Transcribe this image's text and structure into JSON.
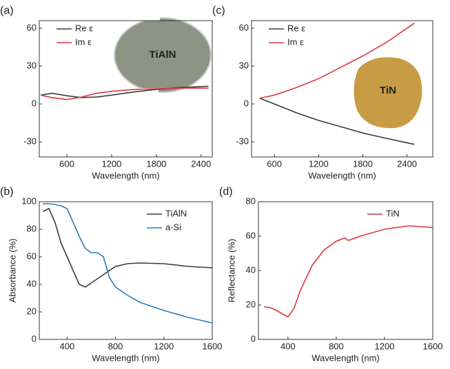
{
  "chart_data": [
    {
      "type": "line",
      "panel_label": "(a)",
      "xlabel": "Wavelength (nm)",
      "inset_label": "TiAlN",
      "legend": "upper left",
      "xlim": [
        230,
        2550
      ],
      "xticks": [
        600,
        1200,
        1800,
        2400
      ],
      "ylim": [
        -42,
        66
      ],
      "yticks": [
        -30,
        0,
        30,
        60
      ],
      "x": [
        250,
        400,
        600,
        800,
        1000,
        1200,
        1500,
        1800,
        2100,
        2500
      ],
      "series": [
        {
          "name": "Re ε",
          "color": "#3a3a3a",
          "values": [
            7,
            8.5,
            6.5,
            5,
            5.5,
            7,
            9.5,
            11.5,
            13,
            14
          ]
        },
        {
          "name": "Im ε",
          "color": "#d9363e",
          "values": [
            7,
            5,
            3.5,
            5.5,
            8.5,
            10,
            11.5,
            12,
            12.5,
            12.5
          ]
        }
      ]
    },
    {
      "type": "line",
      "panel_label": "(b)",
      "xlabel": "Wavelength (nm)",
      "ylabel": "Absorbance (%)",
      "legend": "upper right",
      "xlim": [
        170,
        1600
      ],
      "xticks": [
        400,
        800,
        1200,
        1600
      ],
      "ylim": [
        0,
        100
      ],
      "yticks": [
        0,
        20,
        40,
        60,
        80,
        100
      ],
      "x": [
        200,
        250,
        300,
        350,
        400,
        450,
        500,
        550,
        600,
        650,
        700,
        750,
        800,
        900,
        1000,
        1200,
        1400,
        1600
      ],
      "series": [
        {
          "name": "TiAlN",
          "color": "#3a3a3a",
          "values": [
            93,
            95,
            85,
            70,
            60,
            50,
            40,
            38,
            41,
            44,
            47,
            50,
            53,
            55,
            55.5,
            55,
            53,
            52
          ]
        },
        {
          "name": "a-Si",
          "color": "#2b7bba",
          "values": [
            98.5,
            98.5,
            98,
            97,
            95,
            85,
            75,
            66,
            63,
            63,
            60,
            45,
            38,
            32,
            27,
            21,
            16,
            12
          ]
        }
      ]
    },
    {
      "type": "line",
      "panel_label": "(c)",
      "xlabel": "Wavelength (nm)",
      "inset_label": "TiN",
      "legend": "upper left",
      "xlim": [
        290,
        2750
      ],
      "xticks": [
        600,
        1200,
        1800,
        2400
      ],
      "ylim": [
        -42,
        66
      ],
      "yticks": [
        -30,
        0,
        30,
        60
      ],
      "x": [
        400,
        600,
        900,
        1200,
        1500,
        1800,
        2100,
        2500
      ],
      "series": [
        {
          "name": "Re ε",
          "color": "#3a3a3a",
          "values": [
            4.5,
            0,
            -7,
            -13,
            -18,
            -23,
            -27,
            -32
          ]
        },
        {
          "name": "Im ε",
          "color": "#d9363e",
          "values": [
            4.5,
            7,
            13,
            20,
            29,
            38,
            48,
            64
          ]
        }
      ]
    },
    {
      "type": "line",
      "panel_label": "(d)",
      "xlabel": "Wavelength (nm)",
      "ylabel": "Reflectance (%)",
      "legend": "upper right",
      "xlim": [
        155,
        1600
      ],
      "xticks": [
        400,
        800,
        1200,
        1600
      ],
      "ylim": [
        0,
        80
      ],
      "yticks": [
        0,
        20,
        40,
        60,
        80
      ],
      "x": [
        200,
        250,
        300,
        350,
        400,
        450,
        500,
        600,
        700,
        800,
        870,
        900,
        1000,
        1200,
        1400,
        1600
      ],
      "series": [
        {
          "name": "TiN",
          "color": "#d9363e",
          "values": [
            19,
            18.5,
            17,
            15,
            13,
            18,
            28,
            43,
            52,
            57,
            59,
            57.5,
            60,
            64,
            66,
            65
          ]
        }
      ]
    }
  ]
}
